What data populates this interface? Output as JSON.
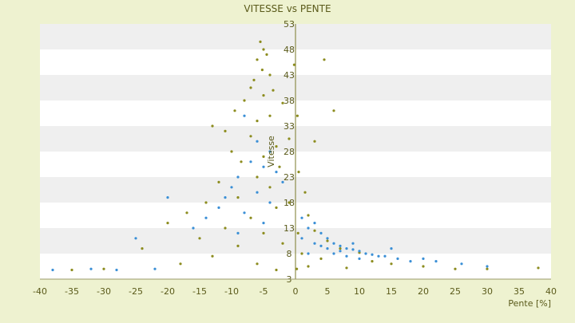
{
  "chart_data": {
    "type": "scatter",
    "title": "VITESSE vs PENTE",
    "xlabel": "Pente [%]",
    "ylabel": "Vitesse",
    "xlim": [
      -40,
      40
    ],
    "ylim": [
      3,
      53
    ],
    "x_ticks": [
      "-40",
      "-35",
      "-30",
      "-25",
      "-20",
      "-15",
      "-10",
      "-5",
      "0",
      "5",
      "10",
      "15",
      "20",
      "25",
      "30",
      "35",
      "40"
    ],
    "y_ticks": [
      "3",
      "8",
      "13",
      "18",
      "23",
      "28",
      "33",
      "38",
      "43",
      "48",
      "53"
    ],
    "grid": "horizontal bands",
    "legend": "none",
    "colors": {
      "olive": "#8c8c1e",
      "blue": "#3a8fd6",
      "band": "#efefef",
      "plot_bg": "#ffffff",
      "background": "#eef2d0"
    },
    "series": [
      {
        "color": "#8c8c1e",
        "values": [
          [
            -5.5,
            49.5
          ],
          [
            -5,
            48
          ],
          [
            -4.5,
            47
          ],
          [
            -6,
            46
          ],
          [
            -5.2,
            44
          ],
          [
            -4,
            43
          ],
          [
            -6.5,
            42
          ],
          [
            -7,
            40.5
          ],
          [
            -3.5,
            40
          ],
          [
            -5,
            39
          ],
          [
            -8,
            38
          ],
          [
            -2,
            37.5
          ],
          [
            -9.5,
            36
          ],
          [
            -4,
            35
          ],
          [
            -6,
            34
          ],
          [
            -13,
            33
          ],
          [
            -11,
            32
          ],
          [
            -7,
            31
          ],
          [
            -1,
            30.5
          ],
          [
            -3,
            29
          ],
          [
            -10,
            28
          ],
          [
            -5,
            27
          ],
          [
            -8.5,
            26
          ],
          [
            -2.5,
            25
          ],
          [
            0.5,
            24
          ],
          [
            -6,
            23
          ],
          [
            -12,
            22
          ],
          [
            -4,
            21
          ],
          [
            1.5,
            20
          ],
          [
            -9,
            19
          ],
          [
            -14,
            18
          ],
          [
            -3,
            17
          ],
          [
            -17,
            16
          ],
          [
            2,
            15.5
          ],
          [
            -7,
            15
          ],
          [
            -20,
            14
          ],
          [
            -11,
            13
          ],
          [
            3,
            12.5
          ],
          [
            -5,
            12
          ],
          [
            -15,
            11
          ],
          [
            5,
            10.5
          ],
          [
            -2,
            10
          ],
          [
            -9,
            9.5
          ],
          [
            7,
            9
          ],
          [
            -24,
            9
          ],
          [
            1,
            8
          ],
          [
            -13,
            7.5
          ],
          [
            10,
            8.2
          ],
          [
            4,
            7
          ],
          [
            -30,
            5
          ],
          [
            -18,
            6
          ],
          [
            12,
            6.5
          ],
          [
            -6,
            6
          ],
          [
            2,
            5.5
          ],
          [
            8,
            5.2
          ],
          [
            15,
            6
          ],
          [
            -35,
            4.8
          ],
          [
            20,
            5.5
          ],
          [
            25,
            5
          ],
          [
            30,
            5
          ],
          [
            38,
            5.2
          ],
          [
            -3,
            4.8
          ],
          [
            0.3,
            35
          ],
          [
            0.4,
            12
          ],
          [
            -0.2,
            45
          ],
          [
            3,
            30
          ],
          [
            6,
            36
          ],
          [
            4.5,
            46
          ],
          [
            0.2,
            5
          ],
          [
            -1,
            18
          ]
        ]
      },
      {
        "color": "#3a8fd6",
        "values": [
          [
            -8,
            35
          ],
          [
            -6,
            30
          ],
          [
            -4,
            28
          ],
          [
            -7,
            26
          ],
          [
            -5,
            25
          ],
          [
            -3,
            24
          ],
          [
            -9,
            23
          ],
          [
            -2,
            22
          ],
          [
            -10,
            21
          ],
          [
            -6,
            20
          ],
          [
            -11,
            19
          ],
          [
            -4,
            18
          ],
          [
            -12,
            17
          ],
          [
            -8,
            16
          ],
          [
            -14,
            15
          ],
          [
            -5,
            14
          ],
          [
            -16,
            13
          ],
          [
            -20,
            19
          ],
          [
            -25,
            11
          ],
          [
            -9,
            12
          ],
          [
            1,
            15
          ],
          [
            3,
            14
          ],
          [
            2,
            13
          ],
          [
            4,
            12
          ],
          [
            5,
            11
          ],
          [
            3,
            10
          ],
          [
            6,
            10
          ],
          [
            7,
            9.5
          ],
          [
            8,
            9
          ],
          [
            9,
            8.8
          ],
          [
            10,
            8.5
          ],
          [
            11,
            8
          ],
          [
            12,
            7.8
          ],
          [
            13,
            7.5
          ],
          [
            5,
            9
          ],
          [
            6,
            8
          ],
          [
            8,
            7.5
          ],
          [
            10,
            7
          ],
          [
            14,
            7.5
          ],
          [
            16,
            7
          ],
          [
            18,
            6.5
          ],
          [
            20,
            7
          ],
          [
            22,
            6.5
          ],
          [
            26,
            6
          ],
          [
            30,
            5.5
          ],
          [
            -22,
            5
          ],
          [
            -28,
            4.8
          ],
          [
            -32,
            5
          ],
          [
            -38,
            4.8
          ],
          [
            2,
            8
          ],
          [
            4,
            9.5
          ],
          [
            1,
            11
          ],
          [
            15,
            9
          ],
          [
            9,
            10
          ],
          [
            7,
            8.5
          ]
        ]
      }
    ]
  }
}
